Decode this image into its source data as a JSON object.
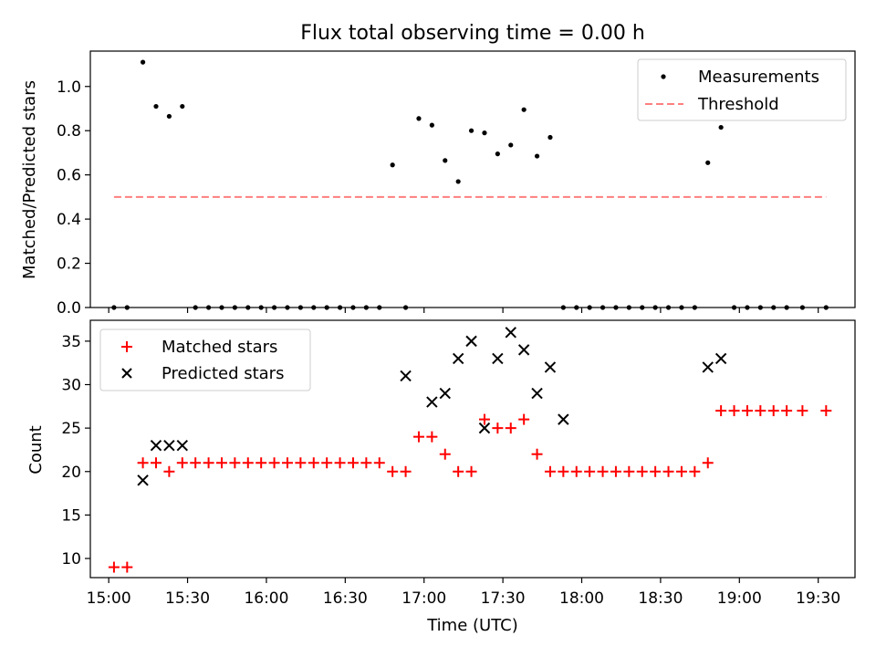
{
  "title": "Flux total observing time = 0.00 h",
  "chart_data": [
    {
      "type": "scatter",
      "ylabel": "Matched/Predicted stars",
      "ylim": [
        0,
        1.16
      ],
      "yticks": [
        0.0,
        0.2,
        0.4,
        0.6,
        0.8,
        1.0
      ],
      "ytick_labels": [
        "0.0",
        "0.2",
        "0.4",
        "0.6",
        "0.8",
        "1.0"
      ],
      "legend_position": "top-right",
      "series": [
        {
          "name": "Measurements",
          "marker": "dot",
          "color": "#000000",
          "x": [
            "15:02",
            "15:07",
            "15:13",
            "15:18",
            "15:23",
            "15:28",
            "15:33",
            "15:38",
            "15:43",
            "15:48",
            "15:53",
            "15:58",
            "16:03",
            "16:08",
            "16:13",
            "16:18",
            "16:23",
            "16:28",
            "16:33",
            "16:38",
            "16:43",
            "16:48",
            "16:53",
            "16:58",
            "17:03",
            "17:08",
            "17:13",
            "17:18",
            "17:23",
            "17:28",
            "17:33",
            "17:38",
            "17:43",
            "17:48",
            "17:53",
            "17:58",
            "18:03",
            "18:08",
            "18:13",
            "18:18",
            "18:23",
            "18:28",
            "18:33",
            "18:38",
            "18:43",
            "18:48",
            "18:53",
            "18:58",
            "19:03",
            "19:08",
            "19:13",
            "19:18",
            "19:24",
            "19:33"
          ],
          "y": [
            0,
            0,
            1.11,
            0.91,
            0.865,
            0.91,
            0,
            0,
            0,
            0,
            0,
            0,
            0,
            0,
            0,
            0,
            0,
            0,
            0,
            0,
            0,
            0.645,
            0,
            0.855,
            0.825,
            0.665,
            0.57,
            0.8,
            0.79,
            0.695,
            0.735,
            0.895,
            0.685,
            0.77,
            0,
            0,
            0,
            0,
            0,
            0,
            0,
            0,
            0,
            0,
            0,
            0.655,
            0.815,
            0,
            0,
            0,
            0,
            0,
            0,
            0
          ]
        },
        {
          "name": "Threshold",
          "style": "dashed",
          "color": "#ff7f7f",
          "x": [
            "15:02",
            "19:33"
          ],
          "y": [
            0.5,
            0.5
          ]
        }
      ]
    },
    {
      "type": "scatter",
      "xlabel": "Time (UTC)",
      "ylabel": "Count",
      "ylim": [
        7.8,
        37.4
      ],
      "yticks": [
        10,
        15,
        20,
        25,
        30,
        35
      ],
      "ytick_labels": [
        "10",
        "15",
        "20",
        "25",
        "30",
        "35"
      ],
      "xlim": [
        "14:53",
        "19:44"
      ],
      "xticks": [
        "15:00",
        "15:30",
        "16:00",
        "16:30",
        "17:00",
        "17:30",
        "18:00",
        "18:30",
        "19:00",
        "19:30"
      ],
      "legend_position": "top-left",
      "series": [
        {
          "name": "Matched stars",
          "marker": "plus",
          "color": "#ff0000",
          "x": [
            "15:02",
            "15:07",
            "15:13",
            "15:18",
            "15:23",
            "15:28",
            "15:33",
            "15:38",
            "15:43",
            "15:48",
            "15:53",
            "15:58",
            "16:03",
            "16:08",
            "16:13",
            "16:18",
            "16:23",
            "16:28",
            "16:33",
            "16:38",
            "16:43",
            "16:48",
            "16:53",
            "16:58",
            "17:03",
            "17:08",
            "17:13",
            "17:18",
            "17:23",
            "17:28",
            "17:33",
            "17:38",
            "17:43",
            "17:48",
            "17:53",
            "17:58",
            "18:03",
            "18:08",
            "18:13",
            "18:18",
            "18:23",
            "18:28",
            "18:33",
            "18:38",
            "18:43",
            "18:48",
            "18:53",
            "18:58",
            "19:03",
            "19:08",
            "19:13",
            "19:18",
            "19:24",
            "19:33"
          ],
          "y": [
            9,
            9,
            21,
            21,
            20,
            21,
            21,
            21,
            21,
            21,
            21,
            21,
            21,
            21,
            21,
            21,
            21,
            21,
            21,
            21,
            21,
            20,
            20,
            24,
            24,
            22,
            20,
            20,
            26,
            25,
            25,
            26,
            22,
            20,
            20,
            20,
            20,
            20,
            20,
            20,
            20,
            20,
            20,
            20,
            20,
            21,
            27,
            27,
            27,
            27,
            27,
            27,
            27,
            27
          ]
        },
        {
          "name": "Predicted stars",
          "marker": "x",
          "color": "#000000",
          "x": [
            "15:13",
            "15:18",
            "15:23",
            "15:28",
            "16:53",
            "17:03",
            "17:08",
            "17:13",
            "17:18",
            "17:23",
            "17:28",
            "17:33",
            "17:38",
            "17:43",
            "17:48",
            "17:53",
            "18:48",
            "18:53"
          ],
          "y": [
            19,
            23,
            23,
            23,
            31,
            28,
            29,
            33,
            35,
            25,
            33,
            36,
            34,
            29,
            32,
            26,
            32,
            33
          ]
        }
      ]
    }
  ]
}
